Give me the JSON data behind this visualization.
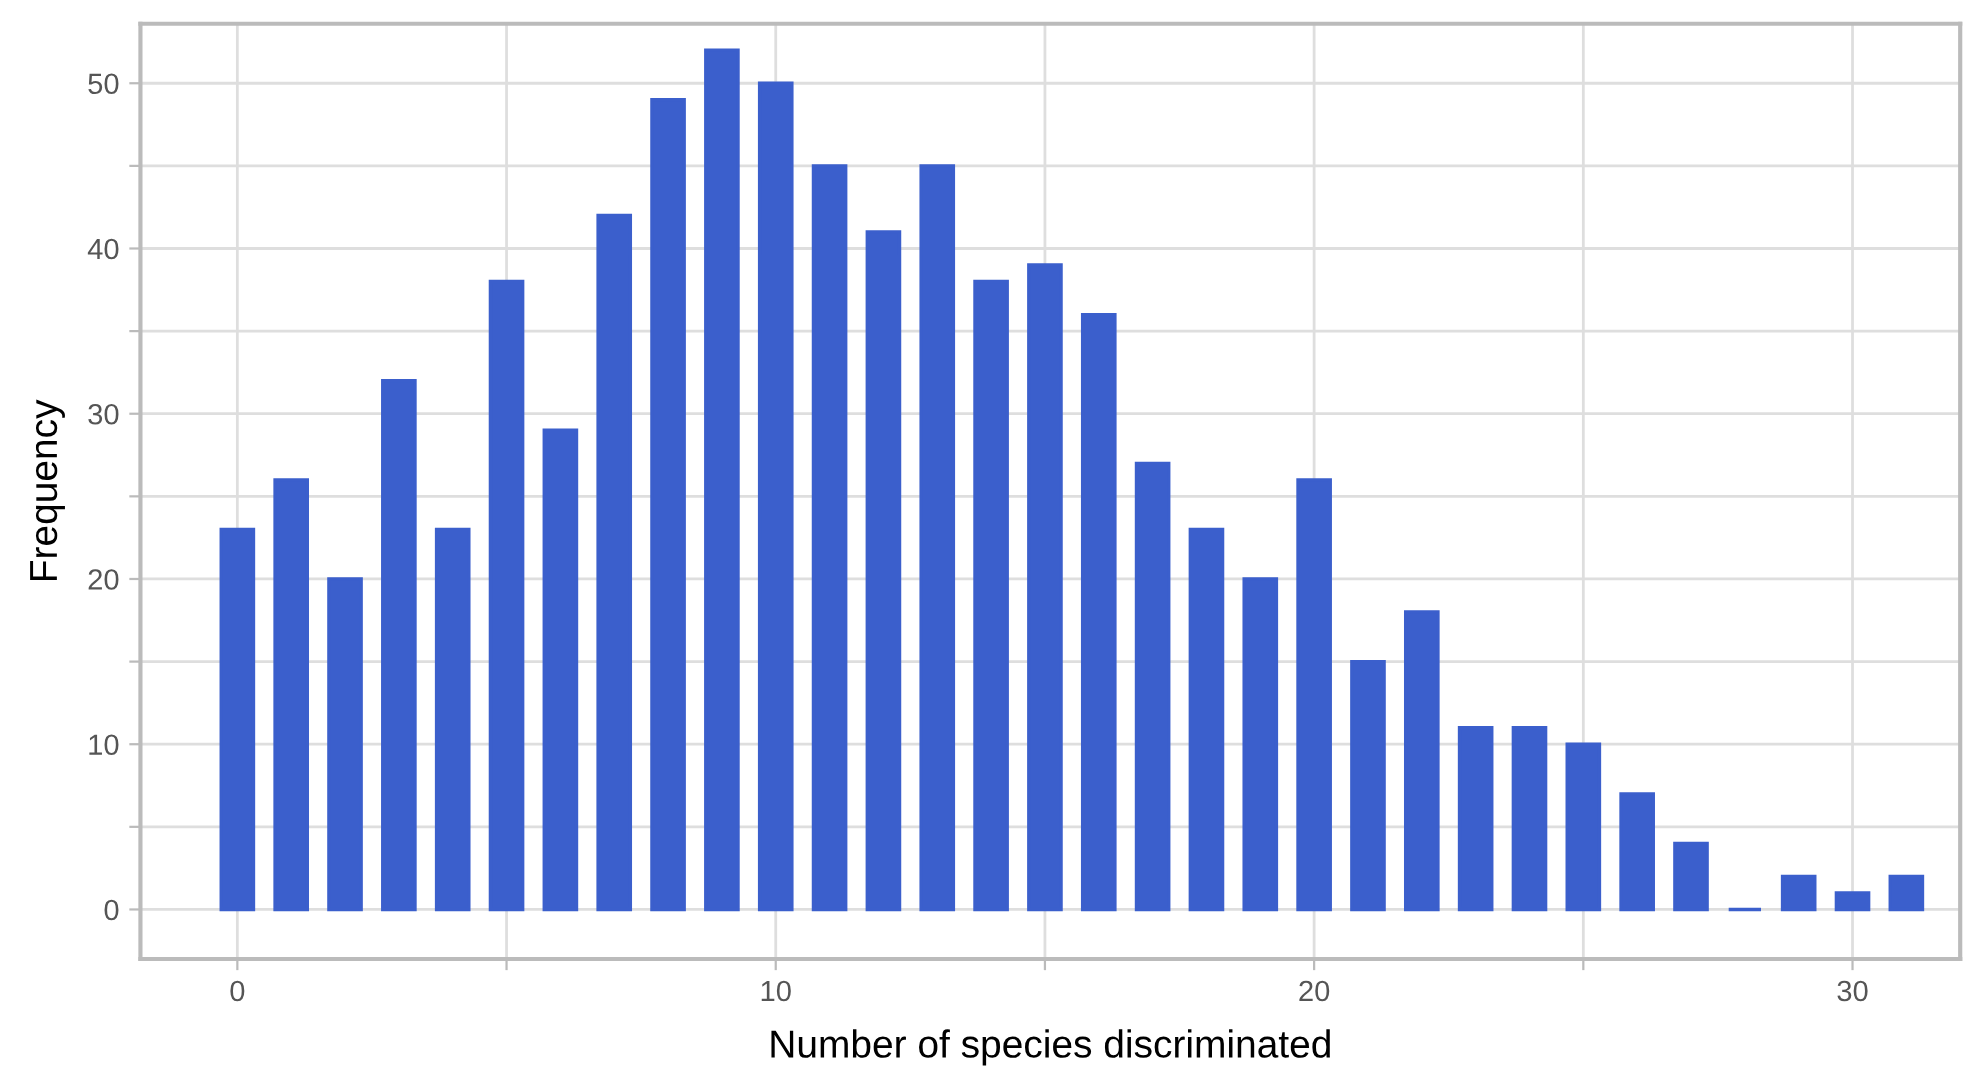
{
  "chart_data": {
    "type": "bar",
    "xlabel": "Number of species discriminated",
    "ylabel": "Frequency",
    "x": [
      0,
      1,
      2,
      3,
      4,
      5,
      6,
      7,
      8,
      9,
      10,
      11,
      12,
      13,
      14,
      15,
      16,
      17,
      18,
      19,
      20,
      21,
      22,
      23,
      24,
      25,
      26,
      27,
      28,
      29,
      30,
      31
    ],
    "values": [
      23,
      26,
      20,
      32,
      23,
      38,
      29,
      42,
      49,
      52,
      50,
      45,
      41,
      45,
      38,
      39,
      36,
      27,
      23,
      20,
      26,
      15,
      18,
      11,
      11,
      10,
      7,
      4,
      0,
      2,
      1,
      2
    ],
    "color": "#3b5fcc",
    "xlim": [
      -1.8,
      32
    ],
    "xticks": [
      0,
      10,
      20,
      30,
      {
        "value": 5,
        "label": null
      },
      {
        "value": 15,
        "label": null
      },
      {
        "value": 25,
        "label": null
      }
    ],
    "ylim": [
      -3,
      53.6
    ],
    "yticks": [
      0,
      10,
      20,
      30,
      40,
      50,
      {
        "value": 5,
        "label": null
      },
      {
        "value": 15,
        "label": null
      },
      {
        "value": 25,
        "label": null
      },
      {
        "value": 35,
        "label": null
      },
      {
        "value": 45,
        "label": null
      }
    ],
    "grid": true
  }
}
